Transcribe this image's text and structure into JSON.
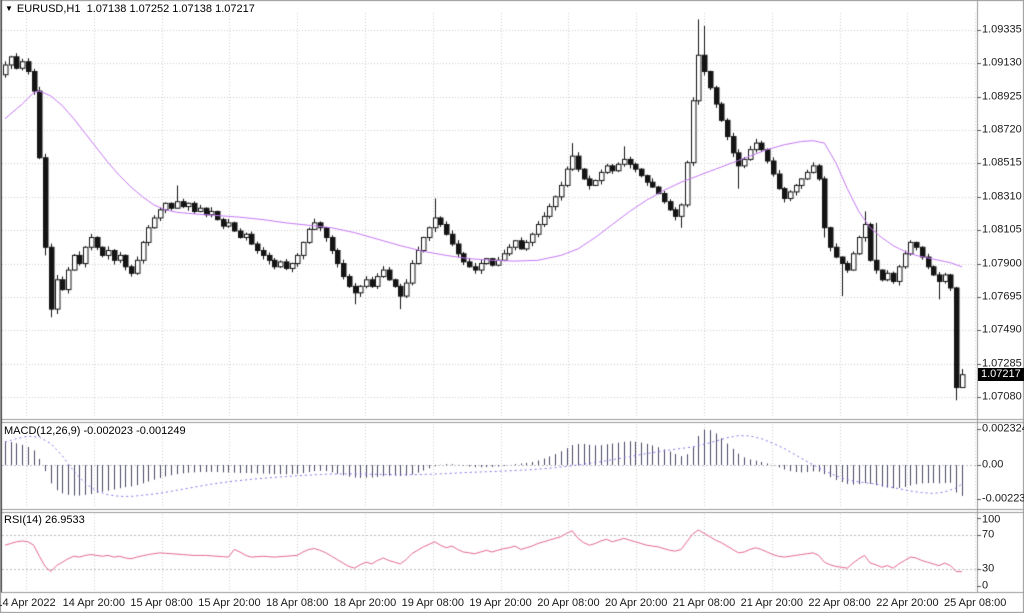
{
  "window": {
    "symbol_period": "EURUSD,H1",
    "ohlc": "1.07138 1.07252 1.07138 1.07217",
    "icons": {
      "collapse": "▼"
    }
  },
  "time_axis": {
    "labels": [
      "14 Apr 2022",
      "14 Apr 20:00",
      "15 Apr 08:00",
      "15 Apr 20:00",
      "18 Apr 08:00",
      "18 Apr 20:00",
      "19 Apr 08:00",
      "19 Apr 20:00",
      "20 Apr 08:00",
      "20 Apr 20:00",
      "21 Apr 08:00",
      "21 Apr 20:00",
      "22 Apr 08:00",
      "22 Apr 20:00",
      "25 Apr 08:00"
    ]
  },
  "price_axis": {
    "labels": [
      "1.09335",
      "1.09130",
      "1.08925",
      "1.08720",
      "1.08515",
      "1.08310",
      "1.08105",
      "1.07900",
      "1.07695",
      "1.07490",
      "1.07285",
      "1.07080"
    ],
    "values": [
      1.09335,
      1.0913,
      1.08925,
      1.0872,
      1.08515,
      1.0831,
      1.08105,
      1.079,
      1.07695,
      1.0749,
      1.07285,
      1.0708
    ],
    "current_label": "1.07217",
    "current_value": 1.07217
  },
  "colors": {
    "bull": "#ffffff",
    "bear": "#141414",
    "outline": "#141414",
    "ma": "#c476f2",
    "macd_hist": "#4a4a66",
    "macd_signal": "#8872e6",
    "rsi": "#e3688f",
    "grid": "#cfcfcf",
    "level": "#bdbdc6",
    "frame": "#9a9a9a",
    "frame_dark": "#3c3c3c",
    "axis_text": "#1a1a1a",
    "tag_bg": "#000000",
    "tag_text": "#ffffff"
  },
  "chart_data": [
    {
      "type": "candlestick",
      "title": "EURUSD,H1",
      "timeframe": "H1",
      "x_labels": [
        "14 Apr 2022",
        "14 Apr 20:00",
        "15 Apr 08:00",
        "15 Apr 20:00",
        "18 Apr 08:00",
        "18 Apr 20:00",
        "19 Apr 08:00",
        "19 Apr 20:00",
        "20 Apr 08:00",
        "20 Apr 20:00",
        "21 Apr 08:00",
        "21 Apr 20:00",
        "22 Apr 08:00",
        "22 Apr 20:00",
        "25 Apr 08:00"
      ],
      "ylim": [
        1.0708,
        1.09335
      ],
      "grid": true,
      "open_first": 1.0906,
      "last_candle": {
        "open": 1.07138,
        "high": 1.07252,
        "low": 1.07138,
        "close": 1.07217
      },
      "closes": [
        1.0912,
        1.0917,
        1.091,
        1.0914,
        1.0908,
        1.0896,
        1.0855,
        1.08,
        1.0762,
        1.078,
        1.0774,
        1.0786,
        1.0795,
        1.079,
        1.08,
        1.0806,
        1.08,
        1.0795,
        1.0798,
        1.0792,
        1.0795,
        1.0788,
        1.0784,
        1.0792,
        1.0803,
        1.0812,
        1.0818,
        1.0823,
        1.0827,
        1.0824,
        1.0828,
        1.0825,
        1.0827,
        1.0822,
        1.0824,
        1.082,
        1.0822,
        1.0817,
        1.0813,
        1.0815,
        1.081,
        1.0806,
        1.0808,
        1.0802,
        1.0798,
        1.0795,
        1.0792,
        1.0788,
        1.0791,
        1.0787,
        1.079,
        1.0795,
        1.0803,
        1.0811,
        1.0815,
        1.0812,
        1.0806,
        1.0798,
        1.079,
        1.0782,
        1.0776,
        1.0772,
        1.0776,
        1.078,
        1.0776,
        1.0782,
        1.0786,
        1.078,
        1.0776,
        1.077,
        1.0778,
        1.079,
        1.0798,
        1.0806,
        1.0812,
        1.0818,
        1.0814,
        1.0808,
        1.0802,
        1.0796,
        1.0791,
        1.0788,
        1.0786,
        1.079,
        1.0793,
        1.0789,
        1.0792,
        1.0796,
        1.08,
        1.0804,
        1.0799,
        1.0803,
        1.0808,
        1.0814,
        1.0819,
        1.0825,
        1.0831,
        1.0838,
        1.0848,
        1.0856,
        1.0848,
        1.0842,
        1.0838,
        1.0841,
        1.0846,
        1.085,
        1.0847,
        1.0851,
        1.0854,
        1.0851,
        1.0848,
        1.0844,
        1.084,
        1.0837,
        1.0833,
        1.0828,
        1.0823,
        1.0819,
        1.0826,
        1.0852,
        1.089,
        1.0918,
        1.0908,
        1.0898,
        1.0888,
        1.0878,
        1.0868,
        1.0858,
        1.085,
        1.0854,
        1.086,
        1.0864,
        1.086,
        1.0853,
        1.0845,
        1.0836,
        1.083,
        1.0834,
        1.0838,
        1.0842,
        1.0846,
        1.085,
        1.0842,
        1.0812,
        1.08,
        1.0794,
        1.079,
        1.0786,
        1.0796,
        1.0806,
        1.0814,
        1.0792,
        1.0786,
        1.078,
        1.0784,
        1.0779,
        1.0788,
        1.0796,
        1.0803,
        1.08,
        1.0794,
        1.0788,
        1.0783,
        1.0779,
        1.0783,
        1.0775,
        1.07138,
        1.07217
      ],
      "wick_overrides": {
        "7": {
          "lo": 1.0795
        },
        "8": {
          "lo": 1.0757
        },
        "9": {
          "lo": 1.0759,
          "hi": 1.0783
        },
        "30": {
          "hi": 1.0838
        },
        "61": {
          "lo": 1.0765
        },
        "69": {
          "lo": 1.0762
        },
        "75": {
          "hi": 1.083
        },
        "99": {
          "hi": 1.0864
        },
        "108": {
          "hi": 1.0862
        },
        "118": {
          "lo": 1.0812
        },
        "121": {
          "hi": 1.094
        },
        "122": {
          "hi": 1.0936
        },
        "128": {
          "lo": 1.0836
        },
        "143": {
          "lo": 1.0806
        },
        "146": {
          "lo": 1.077
        },
        "150": {
          "hi": 1.0822
        },
        "152": {
          "hi": 1.0815
        },
        "163": {
          "lo": 1.0768
        },
        "166": {
          "lo": 1.0706
        },
        "167": {
          "hi": 1.07252,
          "lo": 1.07138
        }
      },
      "ma_anchors": [
        [
          0,
          1.0879
        ],
        [
          3,
          1.0888
        ],
        [
          5,
          1.0895
        ],
        [
          6,
          1.0896
        ],
        [
          8,
          1.0893
        ],
        [
          10,
          1.0887
        ],
        [
          12,
          1.0879
        ],
        [
          14,
          1.087
        ],
        [
          16,
          1.0861
        ],
        [
          18,
          1.0852
        ],
        [
          20,
          1.0844
        ],
        [
          22,
          1.0837
        ],
        [
          24,
          1.0831
        ],
        [
          26,
          1.0826
        ],
        [
          28,
          1.0823
        ],
        [
          30,
          1.08215
        ],
        [
          33,
          1.08205
        ],
        [
          37,
          1.08195
        ],
        [
          41,
          1.08185
        ],
        [
          45,
          1.0817
        ],
        [
          49,
          1.0815
        ],
        [
          53,
          1.08135
        ],
        [
          57,
          1.0812
        ],
        [
          61,
          1.0809
        ],
        [
          65,
          1.0805
        ],
        [
          69,
          1.0801
        ],
        [
          73,
          1.07975
        ],
        [
          77,
          1.0795
        ],
        [
          81,
          1.0793
        ],
        [
          85,
          1.0792
        ],
        [
          89,
          1.07915
        ],
        [
          93,
          1.0792
        ],
        [
          97,
          1.0795
        ],
        [
          100,
          1.0799
        ],
        [
          103,
          1.0806
        ],
        [
          106,
          1.0814
        ],
        [
          109,
          1.0822
        ],
        [
          112,
          1.0829
        ],
        [
          115,
          1.0835
        ],
        [
          118,
          1.084
        ],
        [
          121,
          1.0844
        ],
        [
          124,
          1.0848
        ],
        [
          127,
          1.0852
        ],
        [
          130,
          1.0856
        ],
        [
          133,
          1.086
        ],
        [
          136,
          1.0863
        ],
        [
          139,
          1.0865
        ],
        [
          141,
          1.08655
        ],
        [
          143,
          1.0864
        ],
        [
          145,
          1.0852
        ],
        [
          147,
          1.0836
        ],
        [
          149,
          1.0822
        ],
        [
          151,
          1.0812
        ],
        [
          153,
          1.0806
        ],
        [
          155,
          1.0801
        ],
        [
          157,
          1.07975
        ],
        [
          159,
          1.0795
        ],
        [
          161,
          1.07935
        ],
        [
          163,
          1.0792
        ],
        [
          165,
          1.07905
        ],
        [
          167,
          1.0788
        ]
      ]
    },
    {
      "type": "bar",
      "title": "MACD(12,26,9)",
      "values_display": "-0.002023 -0.001249",
      "main_value": -0.002023,
      "signal_value": -0.001249,
      "y_axis_labels": [
        "0.002324",
        "0.00",
        "-0.00223"
      ],
      "y_axis_values": [
        0.002324,
        0,
        -0.00223
      ],
      "histogram": [
        0.00155,
        0.0015,
        0.00142,
        0.00132,
        0.00118,
        0.00095,
        0.0004,
        -0.0004,
        -0.0012,
        -0.00165,
        -0.00185,
        -0.00195,
        -0.002,
        -0.002,
        -0.00195,
        -0.0019,
        -0.00182,
        -0.00175,
        -0.00168,
        -0.0016,
        -0.00152,
        -0.00145,
        -0.0014,
        -0.00132,
        -0.0012,
        -0.00108,
        -0.00096,
        -0.00085,
        -0.00075,
        -0.00067,
        -0.0006,
        -0.00055,
        -0.0005,
        -0.00048,
        -0.00046,
        -0.00046,
        -0.00045,
        -0.00046,
        -0.00048,
        -0.00049,
        -0.0005,
        -0.00052,
        -0.00052,
        -0.00053,
        -0.00055,
        -0.00056,
        -0.00058,
        -0.0006,
        -0.0006,
        -0.00061,
        -0.0006,
        -0.00058,
        -0.00053,
        -0.00046,
        -0.0004,
        -0.00038,
        -0.0004,
        -0.00048,
        -0.00058,
        -0.00068,
        -0.00076,
        -0.00082,
        -0.00084,
        -0.00083,
        -0.00082,
        -0.00078,
        -0.00073,
        -0.0007,
        -0.0007,
        -0.00072,
        -0.0007,
        -0.00062,
        -0.0005,
        -0.00036,
        -0.00022,
        -8e-05,
        2e-05,
        6e-05,
        6e-05,
        2e-05,
        -4e-05,
        -0.0001,
        -0.00014,
        -0.00015,
        -0.00014,
        -0.00013,
        -0.0001,
        -6e-05,
        0.0,
        6e-05,
        0.0001,
        0.00014,
        0.0002,
        0.0003,
        0.00042,
        0.00056,
        0.00072,
        0.0009,
        0.0011,
        0.0013,
        0.00138,
        0.00138,
        0.00132,
        0.00128,
        0.0013,
        0.00136,
        0.0014,
        0.00146,
        0.00152,
        0.00155,
        0.00152,
        0.00146,
        0.00138,
        0.00128,
        0.00116,
        0.00102,
        0.00088,
        0.00072,
        0.00058,
        0.0007,
        0.0012,
        0.0019,
        0.00232,
        0.00228,
        0.00206,
        0.00174,
        0.0014,
        0.00106,
        0.00074,
        0.0005,
        0.00036,
        0.00028,
        0.0002,
        0.0001,
        -2e-05,
        -0.00016,
        -0.0003,
        -0.0004,
        -0.00046,
        -0.00048,
        -0.00046,
        -0.00042,
        -0.00044,
        -0.0006,
        -0.0008,
        -0.00098,
        -0.00112,
        -0.00124,
        -0.00128,
        -0.00126,
        -0.00118,
        -0.00124,
        -0.00132,
        -0.00142,
        -0.00148,
        -0.00152,
        -0.0015,
        -0.00144,
        -0.00134,
        -0.00126,
        -0.0012,
        -0.00118,
        -0.00118,
        -0.0012,
        -0.00118,
        -0.00116,
        -0.0018,
        -0.00202
      ],
      "signal_anchors": [
        [
          0,
          0.0015
        ],
        [
          2,
          0.00172
        ],
        [
          4,
          0.00188
        ],
        [
          6,
          0.00182
        ],
        [
          8,
          0.0014
        ],
        [
          10,
          0.0006
        ],
        [
          12,
          -0.0004
        ],
        [
          14,
          -0.0012
        ],
        [
          16,
          -0.0017
        ],
        [
          18,
          -0.00195
        ],
        [
          20,
          -0.00205
        ],
        [
          22,
          -0.00205
        ],
        [
          24,
          -0.00198
        ],
        [
          27,
          -0.00185
        ],
        [
          30,
          -0.00165
        ],
        [
          33,
          -0.00145
        ],
        [
          36,
          -0.00125
        ],
        [
          40,
          -0.00105
        ],
        [
          44,
          -0.0009
        ],
        [
          48,
          -0.00078
        ],
        [
          52,
          -0.00068
        ],
        [
          56,
          -0.0006
        ],
        [
          60,
          -0.00058
        ],
        [
          64,
          -0.0006
        ],
        [
          68,
          -0.00063
        ],
        [
          72,
          -0.00063
        ],
        [
          76,
          -0.00058
        ],
        [
          80,
          -0.0005
        ],
        [
          84,
          -0.00044
        ],
        [
          88,
          -0.00038
        ],
        [
          92,
          -0.0003
        ],
        [
          96,
          -0.00018
        ],
        [
          100,
          0.0
        ],
        [
          104,
          0.00022
        ],
        [
          108,
          0.00048
        ],
        [
          112,
          0.00075
        ],
        [
          116,
          0.00098
        ],
        [
          120,
          0.00118
        ],
        [
          123,
          0.00145
        ],
        [
          126,
          0.00178
        ],
        [
          128,
          0.00192
        ],
        [
          130,
          0.0019
        ],
        [
          132,
          0.00172
        ],
        [
          134,
          0.00142
        ],
        [
          136,
          0.00108
        ],
        [
          138,
          0.00065
        ],
        [
          140,
          0.00022
        ],
        [
          142,
          -0.00018
        ],
        [
          144,
          -0.00055
        ],
        [
          146,
          -0.00085
        ],
        [
          148,
          -0.00105
        ],
        [
          150,
          -0.00115
        ],
        [
          152,
          -0.00125
        ],
        [
          154,
          -0.0014
        ],
        [
          156,
          -0.00155
        ],
        [
          158,
          -0.0017
        ],
        [
          160,
          -0.0018
        ],
        [
          162,
          -0.00186
        ],
        [
          164,
          -0.00176
        ],
        [
          166,
          -0.0015
        ],
        [
          167,
          -0.00125
        ]
      ]
    },
    {
      "type": "line",
      "title": "RSI(14)",
      "last_value_display": "26.9533",
      "last_value": 26.9533,
      "levels": [
        100,
        70,
        30,
        0
      ],
      "level_labels": [
        "100",
        "70",
        "30",
        "0"
      ],
      "values": [
        58,
        60,
        62,
        63,
        62,
        58,
        45,
        33,
        27,
        34,
        38,
        42,
        45,
        44,
        46,
        47,
        46,
        45,
        46,
        44,
        45,
        43,
        42,
        44,
        45.5,
        47,
        48,
        49,
        48.5,
        48,
        47.5,
        47,
        46.5,
        46,
        46,
        46,
        45.5,
        45,
        44.5,
        44,
        53,
        50,
        46,
        44,
        44.5,
        45,
        44.5,
        44,
        44.5,
        45,
        45.5,
        46,
        50,
        53,
        54,
        52,
        49,
        45,
        41,
        37,
        33,
        31,
        35,
        38,
        36,
        40,
        43,
        40,
        38,
        36,
        41,
        48,
        52,
        56,
        59,
        62,
        58,
        55,
        57,
        53,
        50,
        49,
        48,
        50,
        52,
        50,
        52,
        54,
        55,
        57,
        53,
        55,
        57,
        60,
        62,
        64,
        66,
        68,
        72,
        75,
        66,
        61,
        58,
        60,
        63,
        65,
        62,
        64,
        66,
        64,
        62,
        60,
        58,
        57,
        56,
        54,
        52,
        51,
        53,
        62,
        71,
        76,
        72,
        68,
        64,
        61,
        57,
        53,
        49,
        50,
        53,
        55,
        53,
        50,
        47,
        45,
        44,
        45,
        46,
        47,
        48,
        49,
        46,
        38,
        35,
        33,
        32,
        31,
        37,
        42,
        46,
        37,
        35,
        32,
        34,
        31,
        36,
        40,
        44,
        43,
        40,
        38,
        36,
        34,
        37,
        34,
        27,
        26.95
      ]
    }
  ]
}
